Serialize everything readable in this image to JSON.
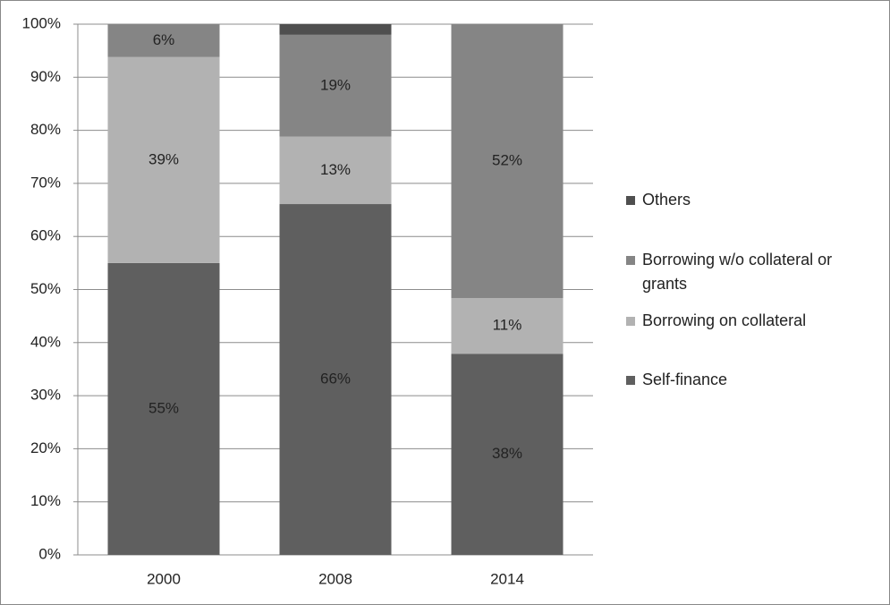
{
  "chart_data": {
    "type": "stacked-bar",
    "categories": [
      "2000",
      "2008",
      "2014"
    ],
    "series": [
      {
        "name": "Self-finance",
        "color": "#5f5f5f",
        "values": [
          55.0,
          66.1,
          37.9
        ],
        "value_labels": [
          "55%",
          "66%",
          "38%"
        ]
      },
      {
        "name": "Borrowing on collateral",
        "color": "#b2b2b2",
        "values": [
          38.8,
          12.7,
          10.5
        ],
        "value_labels": [
          "39%",
          "13%",
          "11%"
        ]
      },
      {
        "name": "Borrowing w/o collateral or grants",
        "color": "#858585",
        "values": [
          6.2,
          19.2,
          51.6
        ],
        "value_labels": [
          "6%",
          "19%",
          "52%"
        ]
      },
      {
        "name": "Others",
        "color": "#4f4f4f",
        "values": [
          0,
          2.0,
          0
        ],
        "value_labels": [
          null,
          null,
          null
        ]
      }
    ],
    "ylim": [
      0,
      100
    ],
    "yticks": [
      {
        "value": 0,
        "label": "0%"
      },
      {
        "value": 10,
        "label": "10%"
      },
      {
        "value": 20,
        "label": "20%"
      },
      {
        "value": 30,
        "label": "30%"
      },
      {
        "value": 40,
        "label": "40%"
      },
      {
        "value": 50,
        "label": "50%"
      },
      {
        "value": 60,
        "label": "60%"
      },
      {
        "value": 70,
        "label": "70%"
      },
      {
        "value": 80,
        "label": "80%"
      },
      {
        "value": 90,
        "label": "90%"
      },
      {
        "value": 100,
        "label": "100%"
      }
    ],
    "grid": true
  }
}
